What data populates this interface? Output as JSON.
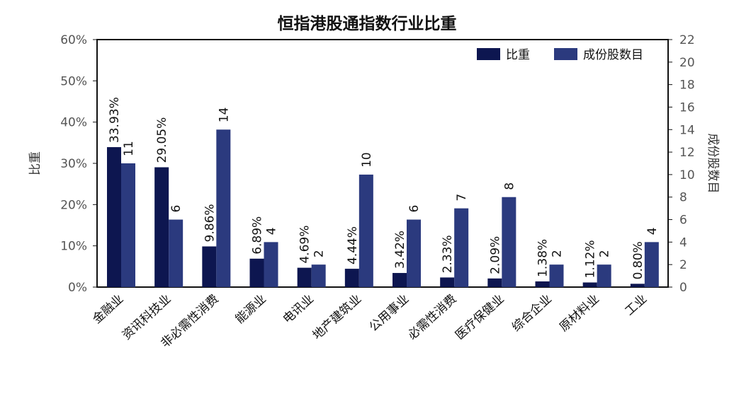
{
  "chart_data": {
    "type": "bar",
    "title": "恒指港股通指数行业比重",
    "categories": [
      "金融业",
      "资讯科技业",
      "非必需性消费",
      "能源业",
      "电讯业",
      "地产建筑业",
      "公用事业",
      "必需性消费",
      "医疗保健业",
      "综合企业",
      "原材料业",
      "工业"
    ],
    "series": [
      {
        "name": "比重",
        "axis": "left",
        "color": "#0d1650",
        "values": [
          33.93,
          29.05,
          9.86,
          6.89,
          4.69,
          4.44,
          3.42,
          2.33,
          2.09,
          1.38,
          1.12,
          0.8
        ],
        "labels": [
          "33.93%",
          "29.05%",
          "9.86%",
          "6.89%",
          "4.69%",
          "4.44%",
          "3.42%",
          "2.33%",
          "2.09%",
          "1.38%",
          "1.12%",
          "0.80%"
        ]
      },
      {
        "name": "成份股数目",
        "axis": "right",
        "color": "#2b3a7e",
        "values": [
          11,
          6,
          14,
          4,
          2,
          10,
          6,
          7,
          8,
          2,
          2,
          4
        ],
        "labels": [
          "11",
          "6",
          "14",
          "4",
          "2",
          "10",
          "6",
          "7",
          "8",
          "2",
          "2",
          "4"
        ]
      }
    ],
    "ylabel": "比重",
    "y2label": "成份股数目",
    "ylim": [
      0,
      60
    ],
    "y2lim": [
      0,
      22
    ],
    "yticks": [
      "0%",
      "10%",
      "20%",
      "30%",
      "40%",
      "50%",
      "60%"
    ],
    "y2ticks": [
      "0",
      "2",
      "4",
      "6",
      "8",
      "10",
      "12",
      "14",
      "16",
      "18",
      "20",
      "22"
    ],
    "grid": false,
    "legend": "top-right"
  }
}
